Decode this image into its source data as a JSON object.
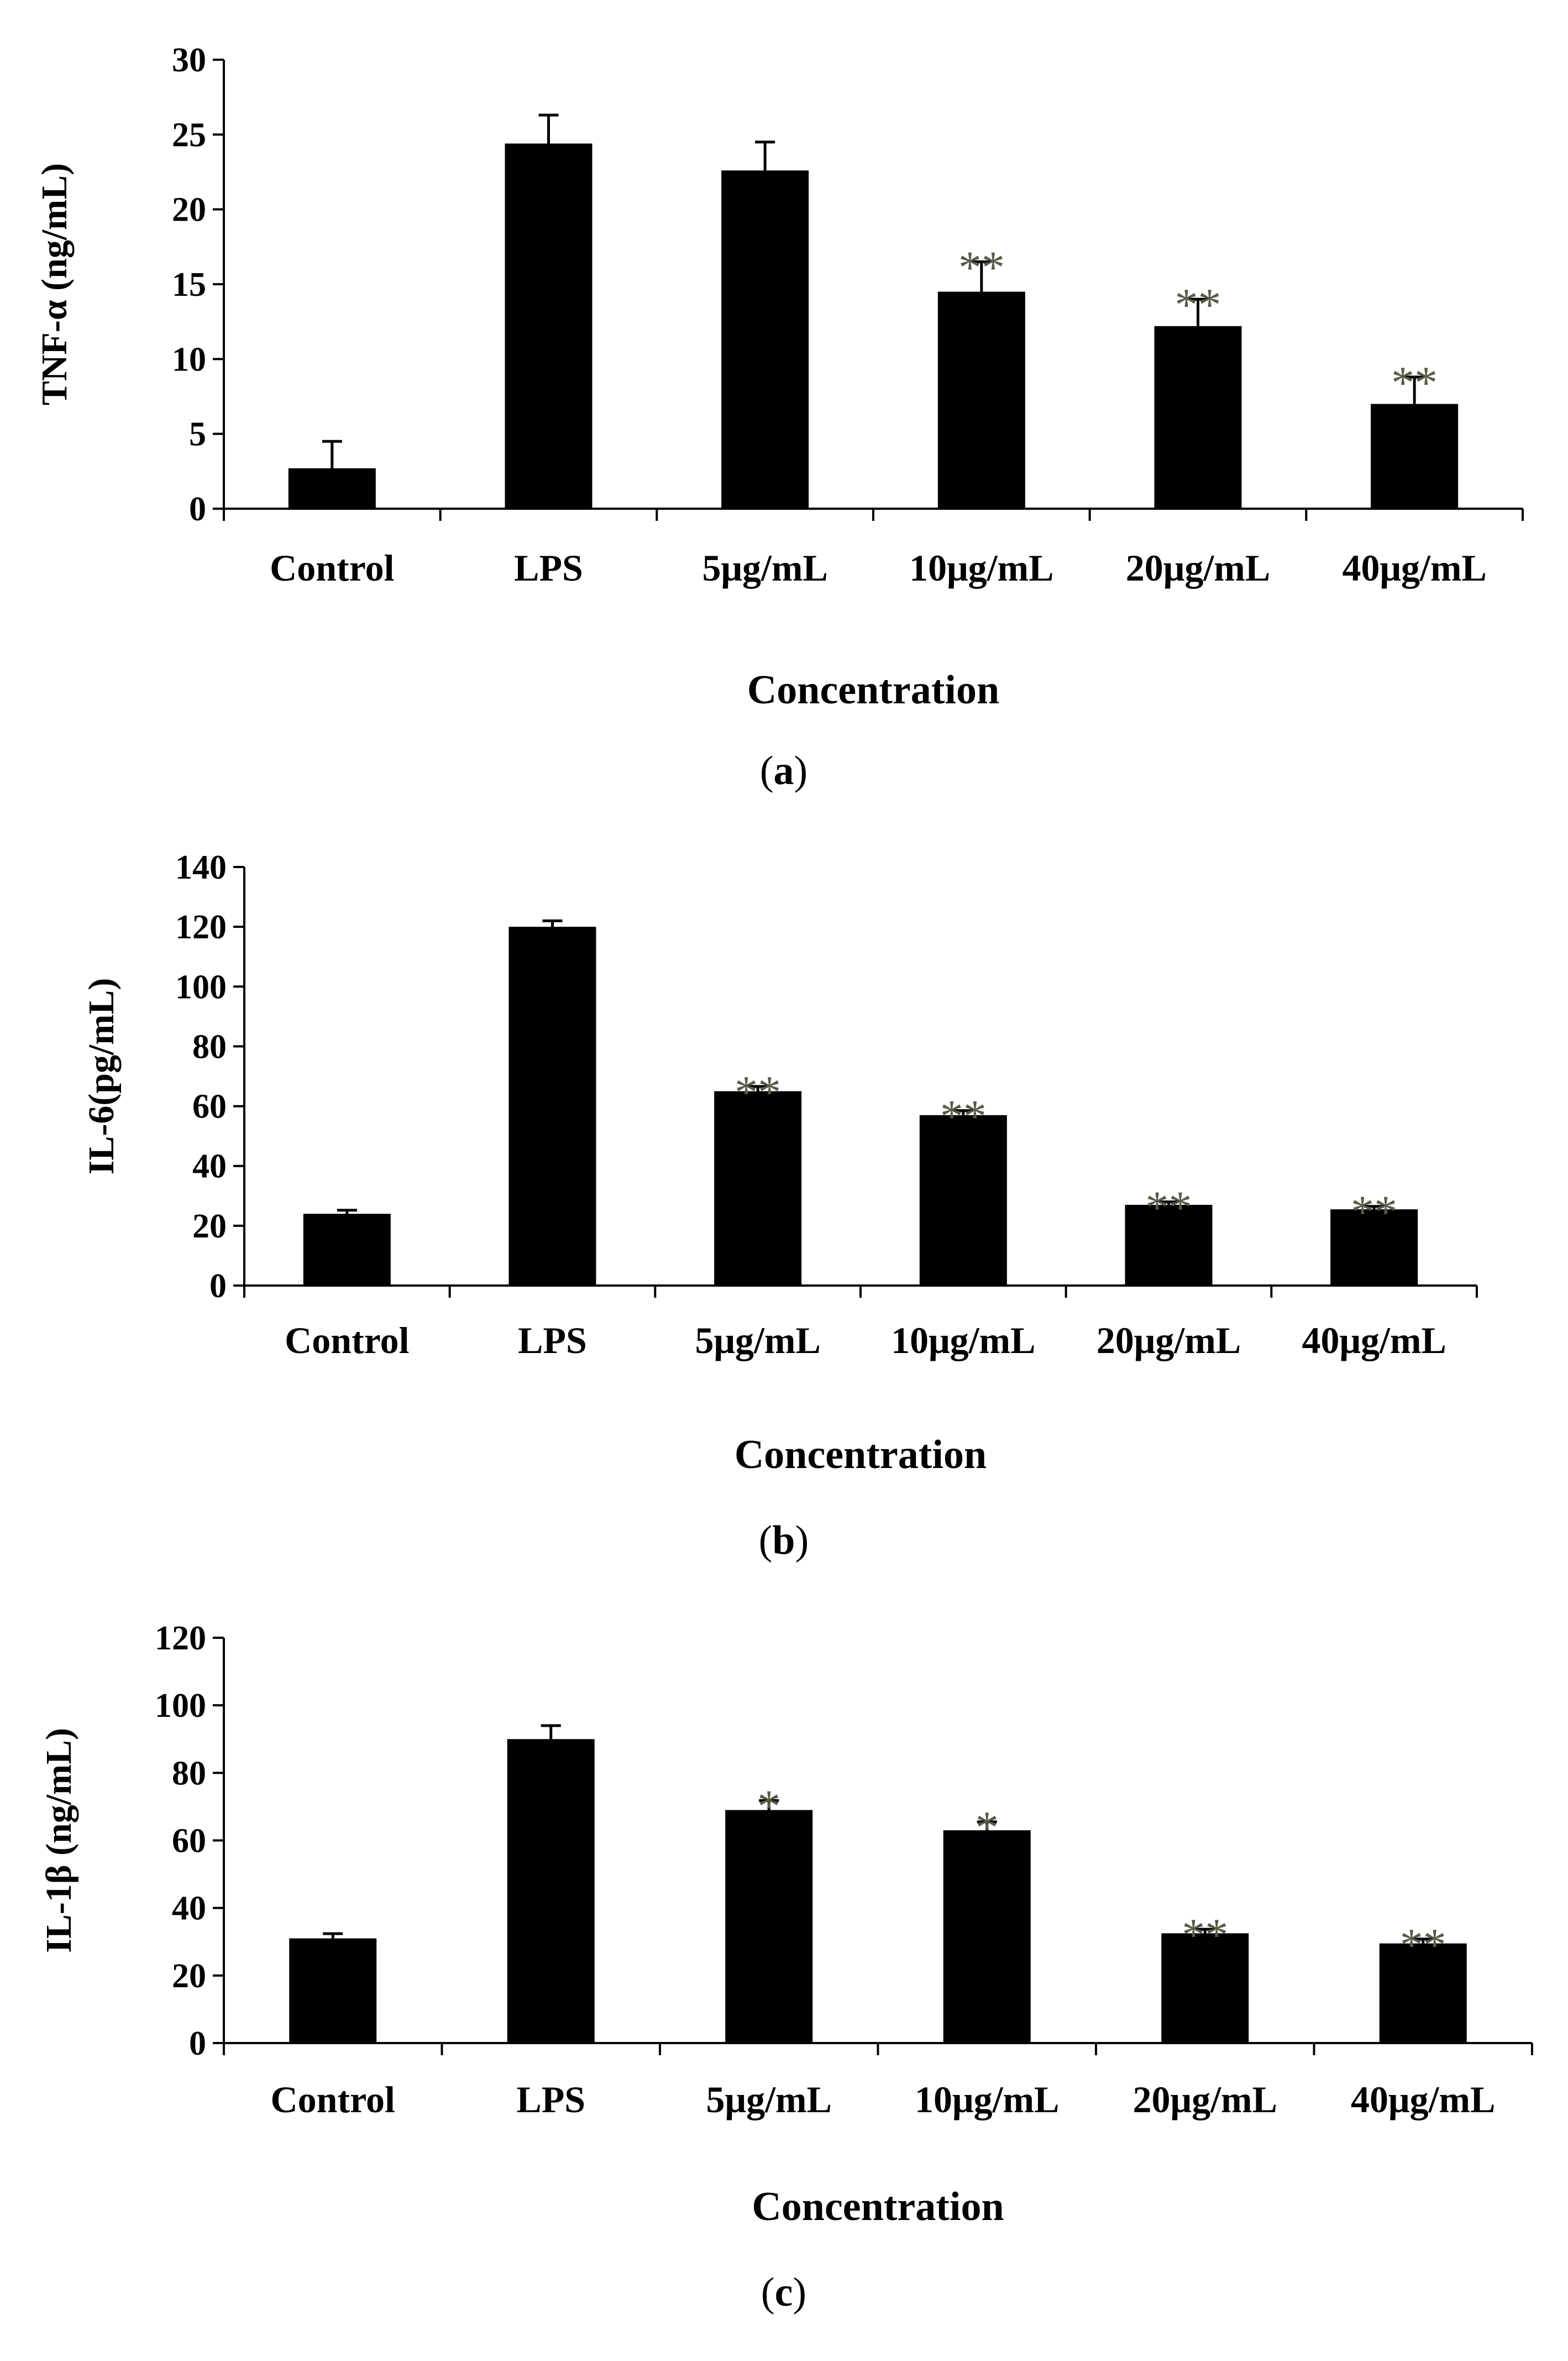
{
  "chart_data": [
    {
      "type": "bar",
      "panel": "a",
      "title": "",
      "xlabel": "Concentration",
      "ylabel": "TNF-α (ng/mL)",
      "ylim": [
        0,
        30
      ],
      "yticks": [
        0,
        5,
        10,
        15,
        20,
        25,
        30
      ],
      "categories": [
        "Control",
        "LPS",
        "5μg/mL",
        "10μg/mL",
        "20μg/mL",
        "40μg/mL"
      ],
      "values": [
        2.7,
        24.4,
        22.6,
        14.5,
        12.2,
        7.0
      ],
      "errors": [
        1.8,
        1.9,
        1.9,
        2.0,
        1.8,
        1.8
      ],
      "significance": [
        "",
        "",
        "",
        "**",
        "**",
        "**"
      ],
      "caption": "a"
    },
    {
      "type": "bar",
      "panel": "b",
      "title": "",
      "xlabel": "Concentration",
      "ylabel": "IL-6(pg/mL)",
      "ylim": [
        0,
        140
      ],
      "yticks": [
        0,
        20,
        40,
        60,
        80,
        100,
        120,
        140
      ],
      "categories": [
        "Control",
        "LPS",
        "5μg/mL",
        "10μg/mL",
        "20μg/mL",
        "40μg/mL"
      ],
      "values": [
        24,
        120,
        65,
        57,
        27,
        25.5
      ],
      "errors": [
        1.2,
        2.0,
        1.6,
        1.5,
        1.0,
        1.0
      ],
      "significance": [
        "",
        "",
        "**",
        "**",
        "**",
        "**"
      ],
      "caption": "b"
    },
    {
      "type": "bar",
      "panel": "c",
      "title": "",
      "xlabel": "Concentration",
      "ylabel": "IL-1β (ng/mL)",
      "ylim": [
        0,
        120
      ],
      "yticks": [
        0,
        20,
        40,
        60,
        80,
        100,
        120
      ],
      "categories": [
        "Control",
        "LPS",
        "5μg/mL",
        "10μg/mL",
        "20μg/mL",
        "40μg/mL"
      ],
      "values": [
        31,
        90,
        69,
        63,
        32.5,
        29.5
      ],
      "errors": [
        1.4,
        4.0,
        2.8,
        2.5,
        1.2,
        1.3
      ],
      "significance": [
        "",
        "",
        "*",
        "*",
        "**",
        "**"
      ],
      "caption": "c"
    }
  ]
}
